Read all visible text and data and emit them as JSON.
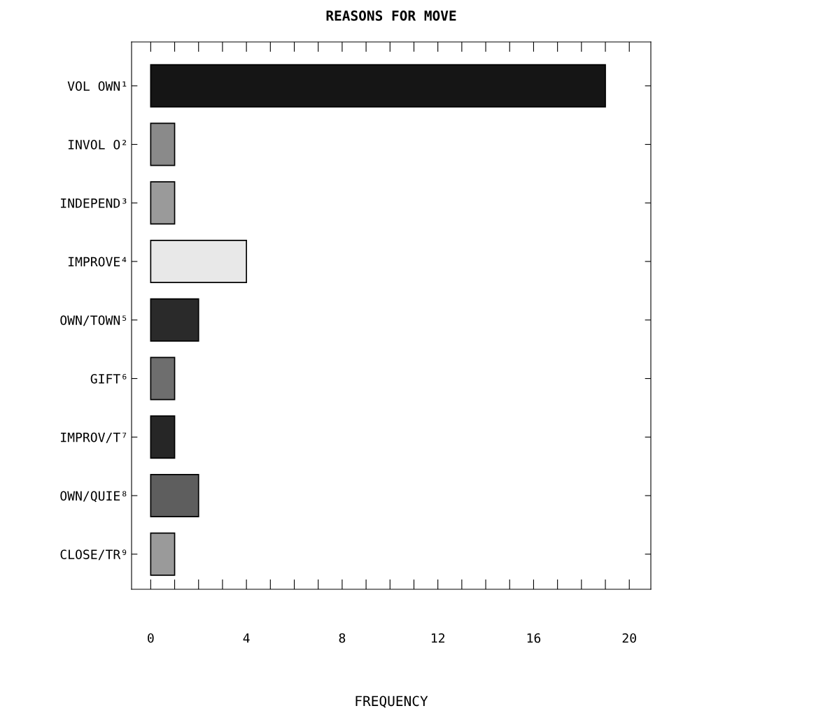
{
  "chart_data": {
    "type": "bar",
    "orientation": "horizontal",
    "title": "REASONS FOR MOVE",
    "xlabel": "FREQUENCY",
    "categories": [
      "VOL OWN¹",
      "INVOL O²",
      "INDEPEND³",
      "IMPROVE⁴",
      "OWN/TOWN⁵",
      "GIFT⁶",
      "IMPROV/T⁷",
      "OWN/QUIE⁸",
      "CLOSE/TR⁹"
    ],
    "values": [
      19,
      1,
      1,
      4,
      2,
      1,
      1,
      2,
      1
    ],
    "colors": [
      "#151515",
      "#8a8a8a",
      "#9a9a9a",
      "#e8e8e8",
      "#2a2a2a",
      "#6e6e6e",
      "#262626",
      "#5e5e5e",
      "#9a9a9a"
    ],
    "xlim": [
      -0.8,
      20.9
    ],
    "xticks": [
      0,
      {
        "value": 1,
        "label": null
      },
      {
        "value": 2,
        "label": null
      },
      {
        "value": 3,
        "label": null
      },
      4,
      {
        "value": 5,
        "label": null
      },
      {
        "value": 6,
        "label": null
      },
      {
        "value": 7,
        "label": null
      },
      8,
      {
        "value": 9,
        "label": null
      },
      {
        "value": 10,
        "label": null
      },
      {
        "value": 11,
        "label": null
      },
      12,
      {
        "value": 13,
        "label": null
      },
      {
        "value": 14,
        "label": null
      },
      {
        "value": 15,
        "label": null
      },
      16,
      {
        "value": 17,
        "label": null
      },
      {
        "value": 18,
        "label": null
      },
      {
        "value": 19,
        "label": null
      },
      20
    ],
    "grid": false,
    "legend": false
  }
}
